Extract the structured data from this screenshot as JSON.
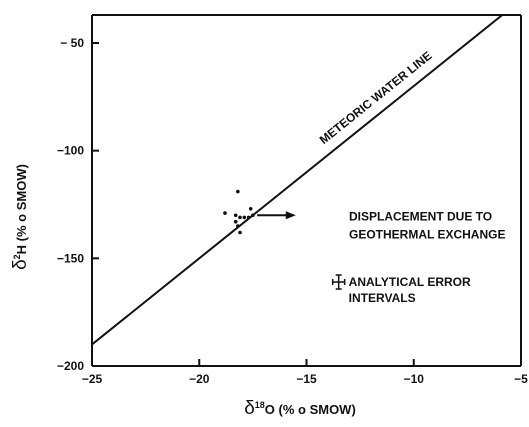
{
  "chart_data": {
    "type": "scatter",
    "title": "",
    "xlabel": {
      "delta": "δ",
      "sup": "18",
      "rest": "O (% o   SMOW)"
    },
    "ylabel": {
      "delta": "δ",
      "sup": "2",
      "rest": "H (% o  SMOW)"
    },
    "xlim": [
      -25,
      -5
    ],
    "ylim": [
      -200,
      -37
    ],
    "x_ticks": [
      -25,
      -20,
      -15,
      -10,
      -5
    ],
    "x_tick_labels": [
      "−25",
      "−20",
      "−15",
      "−10",
      "−5"
    ],
    "y_ticks": [
      -200,
      -150,
      -100,
      -50
    ],
    "y_tick_labels": [
      "−200",
      "−150",
      "−100",
      "− 50"
    ],
    "grid": false,
    "reference_line": {
      "label": "METEORIC WATER LINE",
      "x": [
        -25,
        -5
      ],
      "y": [
        -190,
        -30
      ]
    },
    "points": [
      {
        "x": -18.2,
        "y": -119
      },
      {
        "x": -18.8,
        "y": -129
      },
      {
        "x": -18.3,
        "y": -130
      },
      {
        "x": -18.3,
        "y": -133
      },
      {
        "x": -18.1,
        "y": -131
      },
      {
        "x": -17.9,
        "y": -131
      },
      {
        "x": -17.7,
        "y": -131
      },
      {
        "x": -17.6,
        "y": -127
      },
      {
        "x": -18.2,
        "y": -135
      },
      {
        "x": -18.1,
        "y": -138
      },
      {
        "x": -17.5,
        "y": -130
      }
    ],
    "arrow": {
      "from": [
        -17.3,
        -130
      ],
      "to": [
        -15.5,
        -130
      ],
      "label_lines": [
        "DISPLACEMENT DUE TO",
        "GEOTHERMAL EXCHANGE"
      ]
    },
    "error_bar": {
      "x": -13.5,
      "y": -161,
      "label_lines": [
        "ANALYTICAL ERROR",
        "INTERVALS"
      ]
    }
  }
}
